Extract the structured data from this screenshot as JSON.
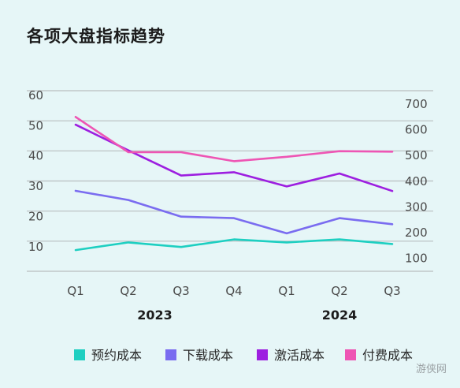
{
  "title": "各项大盘指标趋势",
  "watermark": "游侠网",
  "chart_data": {
    "type": "line",
    "title": "各项大盘指标趋势",
    "categories": [
      "Q1",
      "Q2",
      "Q3",
      "Q4",
      "Q1",
      "Q2",
      "Q3"
    ],
    "year_groups": [
      {
        "label": "2023",
        "categories": [
          "Q1",
          "Q2",
          "Q3",
          "Q4"
        ]
      },
      {
        "label": "2024",
        "categories": [
          "Q1",
          "Q2",
          "Q3"
        ]
      }
    ],
    "y_left": {
      "ticks": [
        10,
        20,
        30,
        40,
        50,
        60
      ],
      "range": [
        2,
        61.5
      ]
    },
    "y_right": {
      "ticks": [
        100,
        200,
        300,
        400,
        500,
        600,
        700
      ],
      "range": [
        50,
        752
      ]
    },
    "grid": "horizontal",
    "legend_position": "bottom",
    "series": [
      {
        "name": "预约成本",
        "color": "#1ecfc1",
        "axis": "left",
        "values": [
          9,
          11.5,
          10,
          12.5,
          11.5,
          12.5,
          11
        ]
      },
      {
        "name": "下载成本",
        "color": "#7a6cf0",
        "axis": "left",
        "values": [
          28.5,
          25.5,
          20,
          19.5,
          14.5,
          19.5,
          17.5
        ]
      },
      {
        "name": "激活成本",
        "color": "#9d1fe0",
        "axis": "right",
        "values": [
          620,
          520,
          422,
          435,
          380,
          430,
          362
        ]
      },
      {
        "name": "付费成本",
        "color": "#ee55b4",
        "axis": "right",
        "values": [
          650,
          513,
          513,
          478,
          495,
          517,
          515
        ]
      }
    ]
  }
}
